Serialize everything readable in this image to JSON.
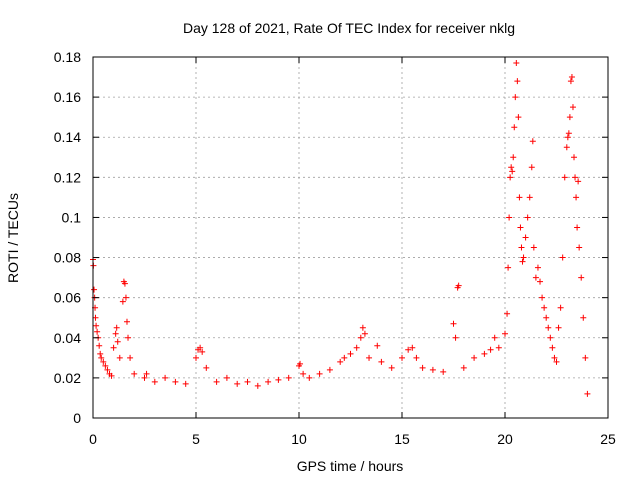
{
  "chart_data": {
    "type": "scatter",
    "title": "Day 128 of 2021, Rate Of TEC Index for receiver nklg",
    "xlabel": "GPS time / hours",
    "ylabel": "ROTI / TECUs",
    "xlim": [
      0,
      25
    ],
    "ylim": [
      0,
      0.18
    ],
    "x_ticks": [
      0,
      5,
      10,
      15,
      20,
      25
    ],
    "x_tick_labels": [
      "0",
      "5",
      "10",
      "15",
      "20",
      "25"
    ],
    "y_ticks": [
      0,
      0.02,
      0.04,
      0.06,
      0.08,
      0.1,
      0.12,
      0.14,
      0.16,
      0.18
    ],
    "y_tick_labels": [
      "0",
      "0.02",
      "0.04",
      "0.06",
      "0.08",
      "0.1",
      "0.12",
      "0.14",
      "0.16",
      "0.18"
    ],
    "grid": true,
    "marker": "plus",
    "color": "#ff0000",
    "series": [
      {
        "points": [
          [
            0.0,
            0.079
          ],
          [
            0.02,
            0.076
          ],
          [
            0.05,
            0.064
          ],
          [
            0.08,
            0.06
          ],
          [
            0.1,
            0.055
          ],
          [
            0.12,
            0.05
          ],
          [
            0.15,
            0.046
          ],
          [
            0.2,
            0.043
          ],
          [
            0.25,
            0.04
          ],
          [
            0.3,
            0.036
          ],
          [
            0.35,
            0.032
          ],
          [
            0.4,
            0.03
          ],
          [
            0.5,
            0.028
          ],
          [
            0.6,
            0.026
          ],
          [
            0.7,
            0.024
          ],
          [
            0.8,
            0.022
          ],
          [
            0.9,
            0.021
          ],
          [
            1.0,
            0.035
          ],
          [
            1.1,
            0.042
          ],
          [
            1.15,
            0.045
          ],
          [
            1.2,
            0.038
          ],
          [
            1.3,
            0.03
          ],
          [
            1.45,
            0.058
          ],
          [
            1.5,
            0.068
          ],
          [
            1.55,
            0.067
          ],
          [
            1.6,
            0.06
          ],
          [
            1.65,
            0.048
          ],
          [
            1.7,
            0.04
          ],
          [
            1.8,
            0.03
          ],
          [
            2.0,
            0.022
          ],
          [
            2.5,
            0.02
          ],
          [
            2.6,
            0.022
          ],
          [
            3.0,
            0.018
          ],
          [
            3.5,
            0.02
          ],
          [
            4.0,
            0.018
          ],
          [
            4.5,
            0.017
          ],
          [
            5.0,
            0.03
          ],
          [
            5.1,
            0.034
          ],
          [
            5.2,
            0.035
          ],
          [
            5.3,
            0.033
          ],
          [
            5.5,
            0.025
          ],
          [
            6.0,
            0.018
          ],
          [
            6.5,
            0.02
          ],
          [
            7.0,
            0.017
          ],
          [
            7.5,
            0.018
          ],
          [
            8.0,
            0.016
          ],
          [
            8.5,
            0.018
          ],
          [
            9.0,
            0.019
          ],
          [
            9.5,
            0.02
          ],
          [
            10.0,
            0.026
          ],
          [
            10.05,
            0.027
          ],
          [
            10.2,
            0.022
          ],
          [
            10.5,
            0.02
          ],
          [
            11.0,
            0.022
          ],
          [
            11.5,
            0.024
          ],
          [
            12.0,
            0.028
          ],
          [
            12.2,
            0.03
          ],
          [
            12.5,
            0.032
          ],
          [
            12.8,
            0.035
          ],
          [
            13.0,
            0.04
          ],
          [
            13.1,
            0.045
          ],
          [
            13.2,
            0.042
          ],
          [
            13.4,
            0.03
          ],
          [
            13.8,
            0.036
          ],
          [
            14.0,
            0.028
          ],
          [
            14.5,
            0.025
          ],
          [
            15.0,
            0.03
          ],
          [
            15.3,
            0.034
          ],
          [
            15.5,
            0.035
          ],
          [
            15.7,
            0.03
          ],
          [
            16.0,
            0.025
          ],
          [
            16.5,
            0.024
          ],
          [
            17.0,
            0.023
          ],
          [
            17.5,
            0.047
          ],
          [
            17.6,
            0.04
          ],
          [
            17.7,
            0.065
          ],
          [
            17.75,
            0.066
          ],
          [
            18.0,
            0.025
          ],
          [
            18.5,
            0.03
          ],
          [
            19.0,
            0.032
          ],
          [
            19.3,
            0.034
          ],
          [
            19.5,
            0.04
          ],
          [
            19.7,
            0.035
          ],
          [
            20.0,
            0.042
          ],
          [
            20.1,
            0.052
          ],
          [
            20.15,
            0.075
          ],
          [
            20.2,
            0.1
          ],
          [
            20.25,
            0.12
          ],
          [
            20.3,
            0.125
          ],
          [
            20.35,
            0.123
          ],
          [
            20.4,
            0.13
          ],
          [
            20.45,
            0.145
          ],
          [
            20.5,
            0.16
          ],
          [
            20.55,
            0.177
          ],
          [
            20.6,
            0.168
          ],
          [
            20.65,
            0.15
          ],
          [
            20.7,
            0.11
          ],
          [
            20.75,
            0.095
          ],
          [
            20.8,
            0.085
          ],
          [
            20.85,
            0.078
          ],
          [
            20.9,
            0.08
          ],
          [
            21.0,
            0.09
          ],
          [
            21.1,
            0.1
          ],
          [
            21.2,
            0.11
          ],
          [
            21.3,
            0.125
          ],
          [
            21.35,
            0.138
          ],
          [
            21.4,
            0.085
          ],
          [
            21.5,
            0.07
          ],
          [
            21.6,
            0.075
          ],
          [
            21.7,
            0.068
          ],
          [
            21.8,
            0.06
          ],
          [
            21.9,
            0.055
          ],
          [
            22.0,
            0.05
          ],
          [
            22.1,
            0.045
          ],
          [
            22.2,
            0.04
          ],
          [
            22.3,
            0.035
          ],
          [
            22.4,
            0.03
          ],
          [
            22.5,
            0.028
          ],
          [
            22.6,
            0.045
          ],
          [
            22.7,
            0.055
          ],
          [
            22.8,
            0.08
          ],
          [
            22.9,
            0.12
          ],
          [
            23.0,
            0.135
          ],
          [
            23.05,
            0.14
          ],
          [
            23.1,
            0.142
          ],
          [
            23.15,
            0.15
          ],
          [
            23.2,
            0.168
          ],
          [
            23.25,
            0.17
          ],
          [
            23.3,
            0.155
          ],
          [
            23.35,
            0.13
          ],
          [
            23.4,
            0.12
          ],
          [
            23.45,
            0.11
          ],
          [
            23.5,
            0.095
          ],
          [
            23.55,
            0.118
          ],
          [
            23.6,
            0.085
          ],
          [
            23.7,
            0.07
          ],
          [
            23.8,
            0.05
          ],
          [
            23.9,
            0.03
          ],
          [
            24.0,
            0.012
          ]
        ]
      }
    ]
  }
}
